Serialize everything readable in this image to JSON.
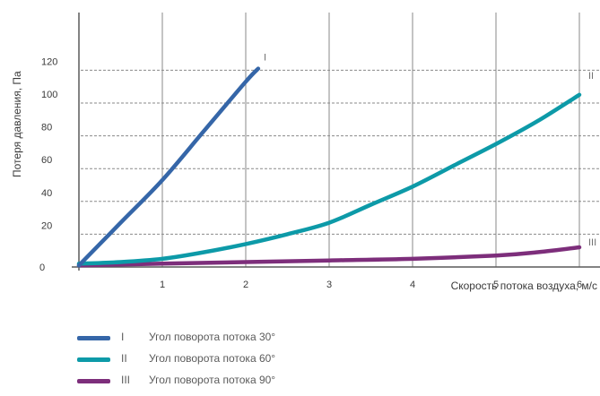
{
  "chart_data": {
    "type": "line",
    "xlabel": "Скорость потока воздуха, м/с",
    "ylabel": "Потеря давления, Па",
    "xlim": [
      0,
      6.2
    ],
    "ylim": [
      0,
      120
    ],
    "x_ticks": [
      "1",
      "2",
      "3",
      "4",
      "5",
      "6"
    ],
    "y_ticks": [
      "0",
      "20",
      "40",
      "60",
      "80",
      "100",
      "120"
    ],
    "grid": true,
    "series": [
      {
        "name": "I",
        "color": "#3566a8",
        "x": [
          0,
          0.5,
          1.0,
          1.5,
          2.0,
          2.15
        ],
        "y": [
          1,
          27,
          53,
          83,
          113,
          121
        ]
      },
      {
        "name": "II",
        "color": "#0d9aa8",
        "x": [
          0,
          0.5,
          1.0,
          1.5,
          2.0,
          2.5,
          3.0,
          3.5,
          4.0,
          4.5,
          5.0,
          5.5,
          6.0
        ],
        "y": [
          2,
          3,
          5,
          9,
          14,
          20,
          27,
          38,
          49,
          62,
          75,
          89,
          105
        ]
      },
      {
        "name": "III",
        "color": "#7d2e7b",
        "x": [
          0,
          1,
          2,
          3,
          4,
          5,
          5.5,
          6.0
        ],
        "y": [
          1,
          2,
          3,
          4,
          5,
          7,
          9,
          12
        ]
      }
    ]
  },
  "legend": [
    {
      "roman": "I",
      "label": "Угол поворота потока 30°",
      "color": "#3566a8"
    },
    {
      "roman": "II",
      "label": "Угол поворота потока 60°",
      "color": "#0d9aa8"
    },
    {
      "roman": "III",
      "label": "Угол поворота потока 90°",
      "color": "#7d2e7b"
    }
  ]
}
